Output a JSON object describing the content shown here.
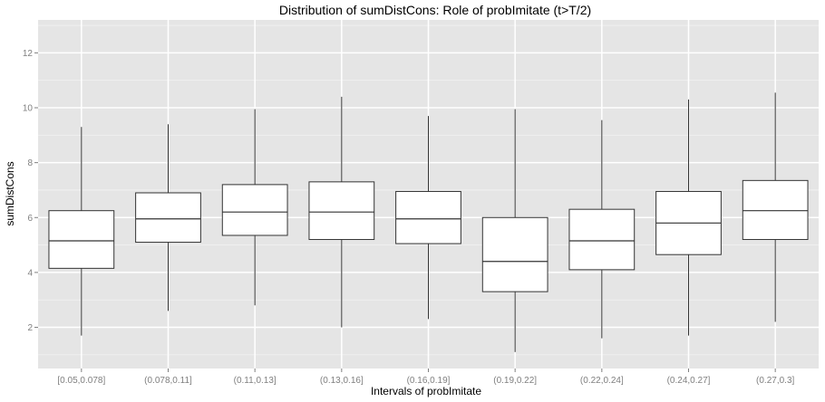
{
  "chart_data": {
    "type": "boxplot",
    "title": "Distribution of sumDistCons: Role of probImitate (t>T/2)",
    "xlabel": "Intervals of probImitate",
    "ylabel": "sumDistCons",
    "ylim": [
      0.5,
      13.2
    ],
    "yticks": [
      2,
      4,
      6,
      8,
      10,
      12
    ],
    "grid": true,
    "colors": {
      "panel": "#e5e5e5",
      "grid_major": "#ffffff",
      "grid_minor": "#f2f2f2",
      "box_fill": "#ffffff",
      "box_stroke": "#333333",
      "tick_text": "#7f7f7f"
    },
    "categories": [
      "[0.05,0.078]",
      "(0.078,0.11]",
      "(0.11,0.13]",
      "(0.13,0.16]",
      "(0.16,0.19]",
      "(0.19,0.22]",
      "(0.22,0.24]",
      "(0.24,0.27]",
      "(0.27,0.3]"
    ],
    "boxes": [
      {
        "min": 1.7,
        "q1": 4.15,
        "median": 5.15,
        "q3": 6.25,
        "max": 9.3
      },
      {
        "min": 2.6,
        "q1": 5.1,
        "median": 5.95,
        "q3": 6.9,
        "max": 9.4
      },
      {
        "min": 2.8,
        "q1": 5.35,
        "median": 6.2,
        "q3": 7.2,
        "max": 9.95
      },
      {
        "min": 2.0,
        "q1": 5.2,
        "median": 6.2,
        "q3": 7.3,
        "max": 10.4
      },
      {
        "min": 2.3,
        "q1": 5.05,
        "median": 5.95,
        "q3": 6.95,
        "max": 9.7
      },
      {
        "min": 1.1,
        "q1": 3.3,
        "median": 4.4,
        "q3": 6.0,
        "max": 9.95
      },
      {
        "min": 1.6,
        "q1": 4.1,
        "median": 5.15,
        "q3": 6.3,
        "max": 9.55
      },
      {
        "min": 1.7,
        "q1": 4.65,
        "median": 5.8,
        "q3": 6.95,
        "max": 10.3
      },
      {
        "min": 2.2,
        "q1": 5.2,
        "median": 6.25,
        "q3": 7.35,
        "max": 10.55
      }
    ]
  }
}
